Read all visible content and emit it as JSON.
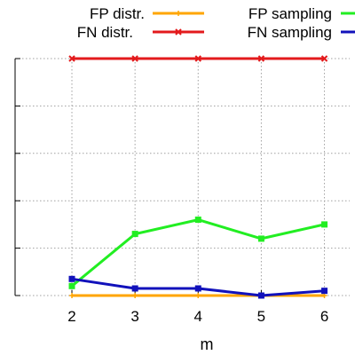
{
  "chart_data": {
    "type": "line",
    "title": "",
    "xlabel": "m",
    "ylabel": "",
    "x": [
      2,
      3,
      4,
      5,
      6
    ],
    "xlim": [
      1.1,
      6.4
    ],
    "ylim": [
      0,
      1
    ],
    "grid": true,
    "legend_position": "top",
    "series": [
      {
        "name": "FP distr.",
        "color": "#ffa500",
        "marker": "plus",
        "values": [
          0,
          0,
          0,
          0,
          0
        ]
      },
      {
        "name": "FN distr.",
        "color": "#e31a1c",
        "marker": "x",
        "values": [
          1,
          1,
          1,
          1,
          1
        ]
      },
      {
        "name": "FP sampling",
        "color": "#22ee22",
        "marker": "square",
        "values": [
          0.04,
          0.26,
          0.32,
          0.24,
          0.3
        ]
      },
      {
        "name": "FN sampling",
        "color": "#1111bb",
        "marker": "square",
        "values": [
          0.07,
          0.03,
          0.03,
          0.0,
          0.02
        ]
      }
    ]
  }
}
